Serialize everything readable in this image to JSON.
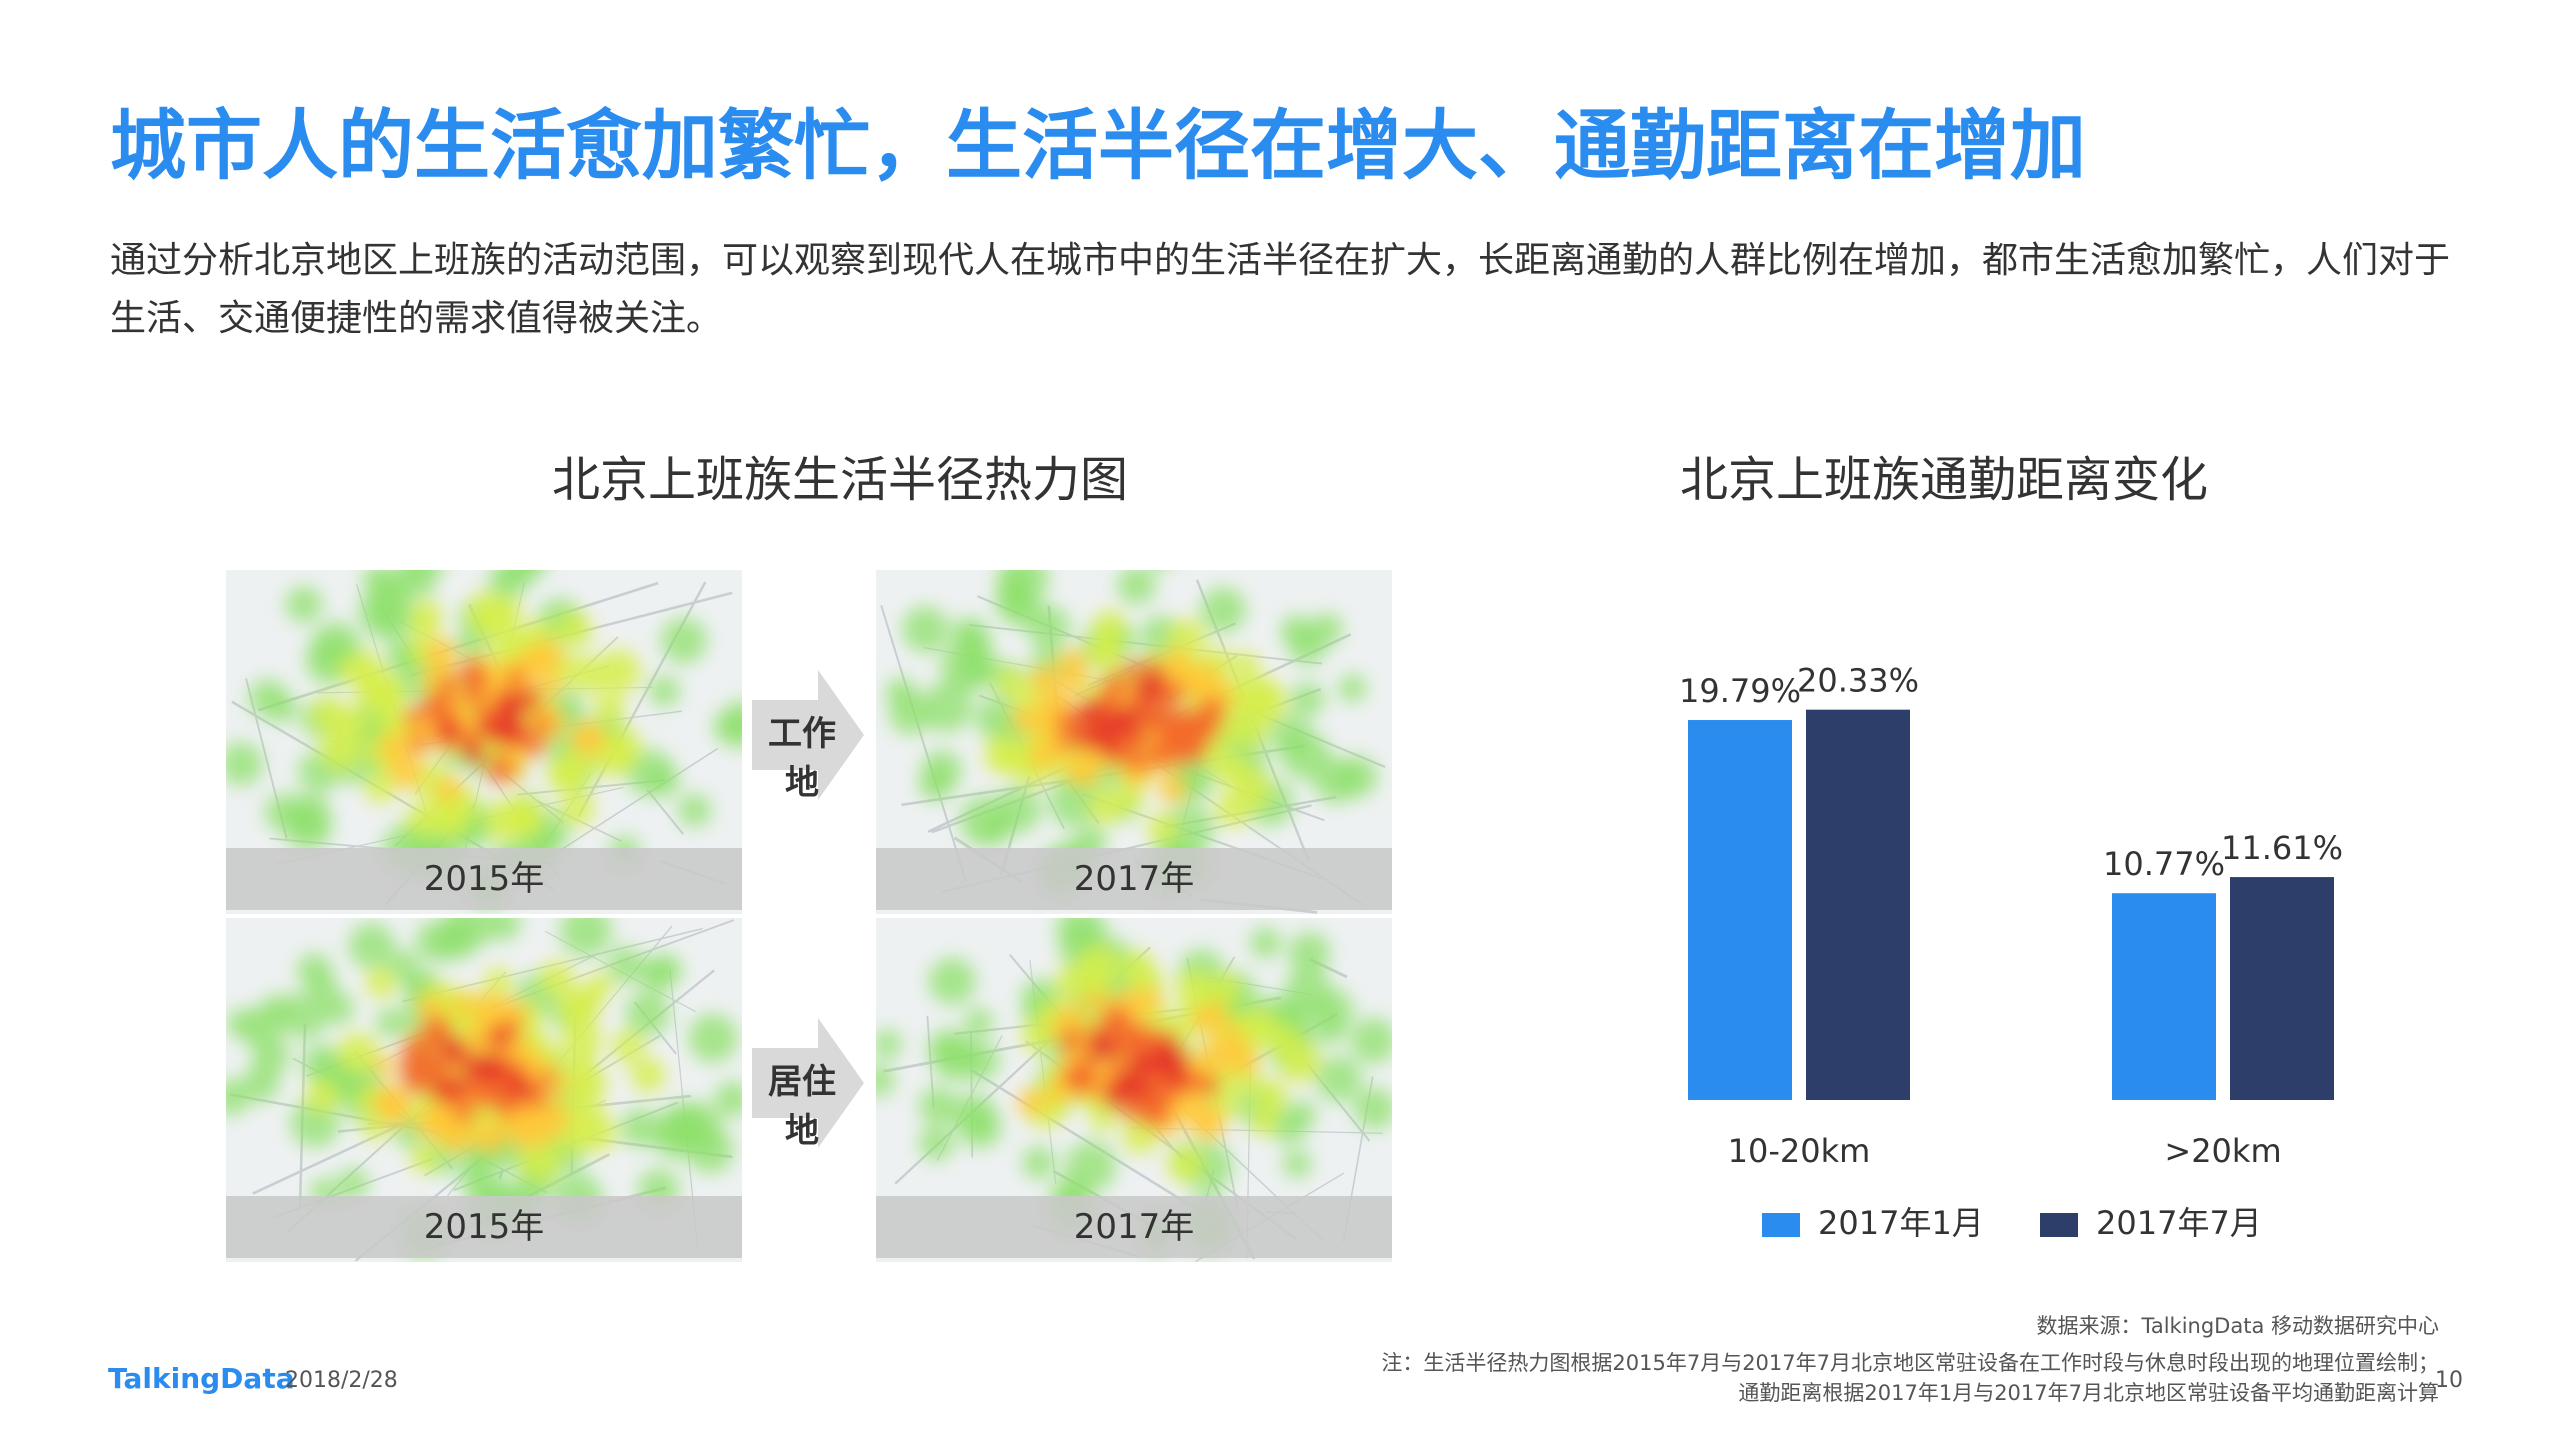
{
  "title": "城市人的生活愈加繁忙，生活半径在增大、通勤距离在增加",
  "description": "通过分析北京地区上班族的活动范围，可以观察到现代人在城市中的生活半径在扩大，长距离通勤的人群比例在增加，都市生活愈加繁忙，人们对于生活、交通便捷性的需求值得被关注。",
  "heatmap_section": {
    "title": "北京上班族生活半径热力图",
    "rows": [
      {
        "arrow_label": "工作地",
        "left_year": "2015年",
        "right_year": "2017年"
      },
      {
        "arrow_label": "居住地",
        "left_year": "2015年",
        "right_year": "2017年"
      }
    ]
  },
  "chart_section": {
    "title": "北京上班族通勤距离变化"
  },
  "chart_data": {
    "type": "bar",
    "title": "北京上班族通勤距离变化",
    "categories": [
      "10-20km",
      ">20km"
    ],
    "series": [
      {
        "name": "2017年1月",
        "values": [
          19.79,
          10.77
        ],
        "labels": [
          "19.79%",
          "10.77%"
        ],
        "color": "#2b8cf0"
      },
      {
        "name": "2017年7月",
        "values": [
          20.33,
          11.61
        ],
        "labels": [
          "20.33%",
          "11.61%"
        ],
        "color": "#2d3e6b"
      }
    ],
    "ylim": [
      0,
      25
    ],
    "grid": false,
    "legend": "bottom"
  },
  "footer": {
    "source": "数据来源：TalkingData 移动数据研究中心",
    "note_line1": "注：生活半径热力图根据2015年7月与2017年7月北京地区常驻设备在工作时段与休息时段出现的地理位置绘制；",
    "note_line2": "通勤距离根据2017年1月与2017年7月北京地区常驻设备平均通勤距离计算",
    "logo": "TalkingData",
    "date": "2018/2/28",
    "page": "10"
  }
}
